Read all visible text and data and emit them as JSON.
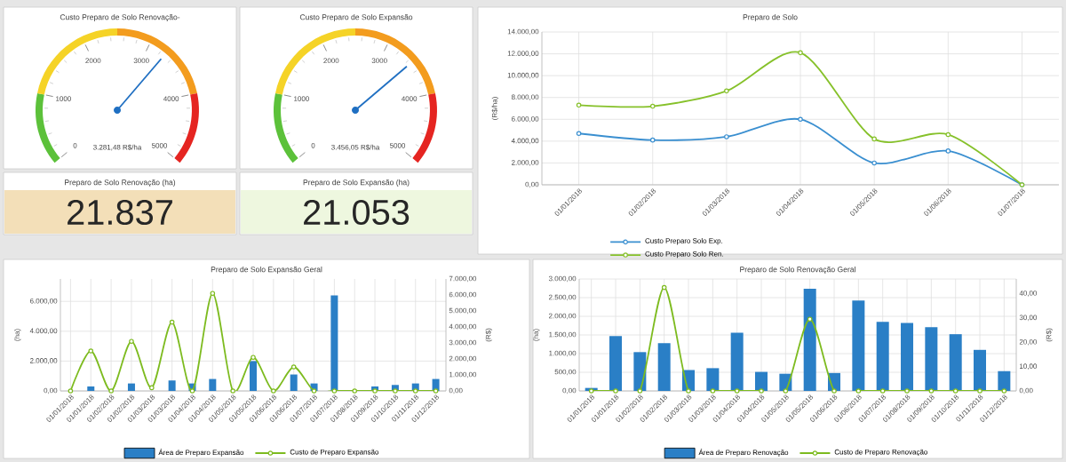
{
  "chart_data": [
    {
      "type": "other",
      "title": "Custo Preparo de Solo Renovação-",
      "annotations": [
        "0",
        "1000",
        "2000",
        "3000",
        "4000",
        "5000",
        "3.281,48 R$/ha"
      ]
    },
    {
      "type": "other",
      "title": "Custo Preparo de Solo Expansão",
      "annotations": [
        "0",
        "1000",
        "2000",
        "3000",
        "4000",
        "5000",
        "3.456,05 R$/ha"
      ]
    },
    {
      "type": "line",
      "title": "Preparo de Solo",
      "ylabel": "(R$/ha)",
      "categories": [
        "01/01/2018",
        "01/02/2018",
        "01/03/2018",
        "01/04/2018",
        "01/05/2018",
        "01/06/2018",
        "01/07/2018"
      ],
      "ylim": [
        0,
        14000
      ],
      "yticks": [
        {
          "value": 0,
          "label": "0,00"
        },
        {
          "value": 2000,
          "label": "2.000,00"
        },
        {
          "value": 4000,
          "label": "4.000,00"
        },
        {
          "value": 6000,
          "label": "6.000,00"
        },
        {
          "value": 8000,
          "label": "8.000,00"
        },
        {
          "value": 10000,
          "label": "10.000,00"
        },
        {
          "value": 12000,
          "label": "12.000,00"
        },
        {
          "value": 14000,
          "label": "14.000,00"
        }
      ],
      "grid": true,
      "legend": "bottom",
      "marker": "circle",
      "series": [
        {
          "name": "Custo Preparo Solo Exp.",
          "color": "#3a8fd0",
          "values": [
            4700,
            4100,
            4400,
            6000,
            2000,
            3100,
            0
          ]
        },
        {
          "name": "Custo Preparo Solo Ren.",
          "color": "#86c12a",
          "values": [
            7300,
            7200,
            8600,
            12100,
            4200,
            4600,
            0
          ]
        }
      ]
    },
    {
      "type": "other",
      "title": "Preparo de Solo Renovação (ha)",
      "annotations": [
        "21.837"
      ],
      "color": "#f3dfb8"
    },
    {
      "type": "other",
      "title": "Preparo de Solo Expansão (ha)",
      "annotations": [
        "21.053"
      ],
      "color": "#eef7df"
    },
    {
      "type": "bar",
      "title": "Preparo de Solo Expansão Geral",
      "ylabel": "(ha)",
      "y2label": "(R$)",
      "categories": [
        "01/01/2018",
        "01/01/2018",
        "01/02/2018",
        "01/02/2018",
        "01/03/2018",
        "01/03/2018",
        "01/04/2018",
        "01/04/2018",
        "01/05/2018",
        "01/05/2018",
        "01/06/2018",
        "01/06/2018",
        "01/07/2018",
        "01/07/2018",
        "01/08/2018",
        "01/09/2018",
        "01/10/2018",
        "01/11/2018",
        "01/12/2018"
      ],
      "ylim": [
        0,
        7500
      ],
      "yticks": [
        {
          "value": 0,
          "label": "0,00"
        },
        {
          "value": 2000,
          "label": "2.000,00"
        },
        {
          "value": 4000,
          "label": "4.000,00"
        },
        {
          "value": 6000,
          "label": "6.000,00"
        }
      ],
      "y2lim": [
        0,
        7000
      ],
      "y2ticks": [
        {
          "value": 0,
          "label": "0,00"
        },
        {
          "value": 1000,
          "label": "1.000,00"
        },
        {
          "value": 2000,
          "label": "2.000,00"
        },
        {
          "value": 3000,
          "label": "3.000,00"
        },
        {
          "value": 4000,
          "label": "4.000,00"
        },
        {
          "value": 5000,
          "label": "5.000,00"
        },
        {
          "value": 6000,
          "label": "6.000,00"
        },
        {
          "value": 7000,
          "label": "7.000,00"
        }
      ],
      "grid": true,
      "legend": "bottom",
      "marker": "circle",
      "series": [
        {
          "name": "Área de Preparo Expansão",
          "type": "bar",
          "color": "#2a7fc6",
          "values": [
            0,
            300,
            0,
            500,
            0,
            700,
            500,
            800,
            0,
            2000,
            0,
            1100,
            500,
            6400,
            0,
            300,
            400,
            500,
            800
          ]
        },
        {
          "name": "Custo de Preparo Expansão",
          "type": "line",
          "axis": "y2",
          "color": "#7dbb1f",
          "values": [
            0,
            2500,
            0,
            3100,
            200,
            4300,
            0,
            6100,
            0,
            2100,
            0,
            1500,
            0,
            0,
            0,
            0,
            0,
            0,
            0
          ]
        }
      ]
    },
    {
      "type": "bar",
      "title": "Preparo de Solo Renovação Geral",
      "ylabel": "(ha)",
      "y2label": "(R$)",
      "categories": [
        "01/01/2018",
        "01/01/2018",
        "01/02/2018",
        "01/02/2018",
        "01/03/2018",
        "01/03/2018",
        "01/04/2018",
        "01/04/2018",
        "01/05/2018",
        "01/05/2018",
        "01/06/2018",
        "01/06/2018",
        "01/07/2018",
        "01/08/2018",
        "01/09/2018",
        "01/10/2018",
        "01/11/2018",
        "01/12/2018"
      ],
      "ylim": [
        0,
        3000
      ],
      "yticks": [
        {
          "value": 0,
          "label": "0,00"
        },
        {
          "value": 500,
          "label": "500,00"
        },
        {
          "value": 1000,
          "label": "1.000,00"
        },
        {
          "value": 1500,
          "label": "1.500,00"
        },
        {
          "value": 2000,
          "label": "2.000,00"
        },
        {
          "value": 2500,
          "label": "2.500,00"
        },
        {
          "value": 3000,
          "label": "3.000,00"
        }
      ],
      "y2lim": [
        0,
        46
      ],
      "y2ticks": [
        {
          "value": 0,
          "label": "0,00"
        },
        {
          "value": 10,
          "label": "10,00"
        },
        {
          "value": 20,
          "label": "20,00"
        },
        {
          "value": 30,
          "label": "30,00"
        },
        {
          "value": 40,
          "label": "40,00"
        }
      ],
      "grid": true,
      "legend": "bottom",
      "marker": "circle",
      "series": [
        {
          "name": "Área de Preparo Renovação",
          "type": "bar",
          "color": "#2a7fc6",
          "values": [
            80,
            1470,
            1040,
            1280,
            560,
            610,
            1560,
            510,
            460,
            2740,
            480,
            2420,
            1850,
            1820,
            1710,
            1520,
            1100,
            530
          ]
        },
        {
          "name": "Custo de Preparo Renovação",
          "type": "line",
          "axis": "y2",
          "color": "#7dbb1f",
          "values": [
            0,
            0,
            0,
            42.5,
            0,
            0,
            0,
            0,
            0,
            29.5,
            0,
            0,
            0,
            0,
            0,
            0,
            0,
            0
          ]
        }
      ]
    }
  ]
}
